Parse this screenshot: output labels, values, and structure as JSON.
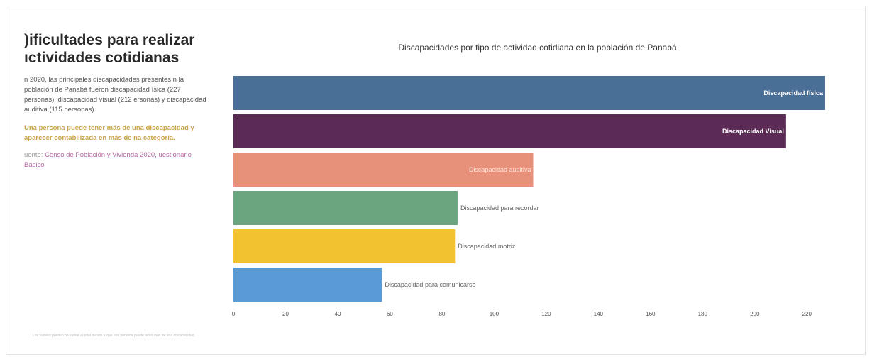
{
  "panel": {
    "title": ")ificultades para realizar ıctividades cotidianas",
    "description": "n 2020, las principales discapacidades presentes n la población de Panabá fueron discapacidad ísica (227 personas), discapacidad visual (212 ersonas) y discapacidad auditiva (115 personas).",
    "note": "Una persona puede tener más de una discapacidad y aparecer contabilizada en más de na categoría.",
    "source_prefix": "uente:",
    "source_link": "Censo de Población y Vivienda 2020, uestionario Básico",
    "footnote": "Los valores pueden no sumar el total debido a que una persona puede tener más de una discapacidad."
  },
  "chart_data": {
    "type": "bar",
    "orientation": "horizontal",
    "title": "Discapacidades por tipo de actividad cotidiana en la población de Panabá",
    "categories": [
      "Discapacidad física",
      "Discapacidad Visual",
      "Discapacidad auditiva",
      "Discapacidad para recordar",
      "Discapacidad motriz",
      "Discapacidad para comunicarse"
    ],
    "values": [
      227,
      212,
      115,
      86,
      85,
      57
    ],
    "colors": [
      "#4a6f96",
      "#5b2a55",
      "#e8917a",
      "#6ba57f",
      "#f2c230",
      "#5b9bd5"
    ],
    "xlim": [
      0,
      230
    ],
    "xticks": [
      0,
      20,
      40,
      60,
      80,
      100,
      120,
      140,
      160,
      180,
      200,
      220
    ],
    "grid": false,
    "legend": "none"
  }
}
